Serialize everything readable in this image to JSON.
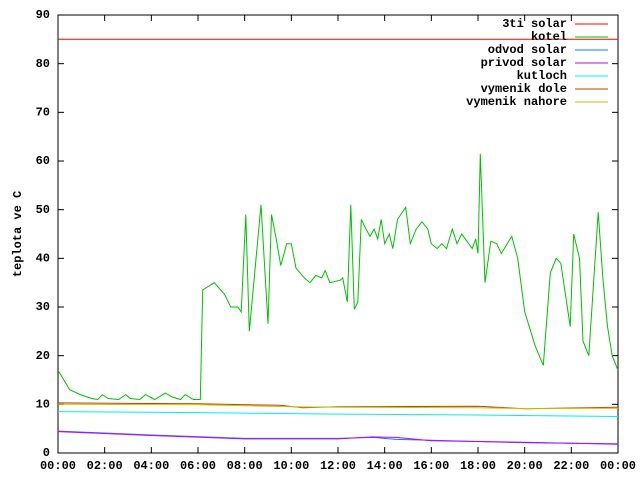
{
  "chart_data": {
    "type": "line",
    "ylabel": "teplota ve C",
    "xlim": [
      0,
      24
    ],
    "ylim": [
      0,
      90
    ],
    "xticks": [
      {
        "value": 0,
        "label": "00:00"
      },
      {
        "value": 2,
        "label": "02:00"
      },
      {
        "value": 4,
        "label": "04:00"
      },
      {
        "value": 6,
        "label": "06:00"
      },
      {
        "value": 8,
        "label": "08:00"
      },
      {
        "value": 10,
        "label": "10:00"
      },
      {
        "value": 12,
        "label": "12:00"
      },
      {
        "value": 14,
        "label": "14:00"
      },
      {
        "value": 16,
        "label": "16:00"
      },
      {
        "value": 18,
        "label": "18:00"
      },
      {
        "value": 20,
        "label": "20:00"
      },
      {
        "value": 22,
        "label": "22:00"
      },
      {
        "value": 24,
        "label": "00:00"
      }
    ],
    "yticks": [
      0,
      10,
      20,
      30,
      40,
      50,
      60,
      70,
      80,
      90
    ],
    "legend": "top-right",
    "series": [
      {
        "name": "3ti solar",
        "color": "#ff0000",
        "x": [
          0,
          24
        ],
        "values": [
          85,
          85
        ]
      },
      {
        "name": "kotel",
        "color": "#00c000",
        "x": [
          0,
          0.5,
          0.95,
          1.45,
          1.7,
          1.9,
          2.15,
          2.6,
          2.9,
          3.1,
          3.5,
          3.75,
          4.15,
          4.6,
          4.9,
          5.25,
          5.45,
          5.8,
          6.1,
          6.2,
          6.7,
          7.15,
          7.4,
          7.7,
          7.85,
          8.05,
          8.2,
          8.7,
          9.0,
          9.15,
          9.35,
          9.55,
          9.8,
          10.0,
          10.2,
          10.55,
          10.8,
          11.05,
          11.3,
          11.45,
          11.65,
          12.1,
          12.2,
          12.4,
          12.55,
          12.7,
          12.85,
          13.0,
          13.2,
          13.37,
          13.55,
          13.7,
          13.85,
          14.0,
          14.2,
          14.35,
          14.55,
          14.9,
          15.1,
          15.35,
          15.6,
          15.85,
          16.0,
          16.25,
          16.45,
          16.65,
          16.9,
          17.1,
          17.3,
          17.75,
          17.9,
          18.0,
          18.1,
          18.3,
          18.55,
          18.8,
          19.0,
          19.25,
          19.45,
          19.7,
          20.0,
          20.45,
          20.8,
          21.1,
          21.35,
          21.55,
          21.95,
          22.1,
          22.35,
          22.5,
          22.75,
          23.15,
          23.35,
          23.55,
          23.75,
          24.0
        ],
        "values": [
          17,
          13,
          12,
          11.2,
          11,
          12,
          11.2,
          11,
          12,
          11.2,
          11,
          12,
          11,
          12.3,
          11.5,
          11,
          12,
          11,
          11,
          33.5,
          35,
          32.5,
          30,
          30,
          29,
          49,
          25,
          51,
          26.5,
          49,
          44,
          38.5,
          43,
          43,
          38,
          36,
          35,
          36.5,
          36,
          37.5,
          35,
          35.5,
          36,
          31,
          51,
          29.5,
          31,
          48,
          46,
          44.5,
          46,
          44,
          48,
          43,
          45,
          42,
          48,
          50.5,
          43,
          46,
          47.5,
          46,
          43,
          42,
          43,
          42,
          46,
          43,
          45,
          42,
          44,
          41,
          61.5,
          35,
          43.5,
          43,
          41,
          43,
          44.5,
          40,
          29,
          22,
          18,
          37,
          40,
          39,
          26,
          45,
          40,
          23,
          20,
          49.5,
          36,
          26,
          20,
          17
        ]
      },
      {
        "name": "odvod solar",
        "color": "#0080ff",
        "x": [
          0,
          4,
          8,
          12,
          13.5,
          14.5,
          16,
          20,
          24
        ],
        "values": [
          4.5,
          3.7,
          3,
          3,
          3.2,
          2.8,
          2.6,
          2.1,
          1.9
        ]
      },
      {
        "name": "privod solar",
        "color": "#c000ff",
        "x": [
          0,
          4,
          8,
          12,
          13.5,
          14.5,
          16,
          20,
          24
        ],
        "values": [
          4.4,
          3.6,
          2.9,
          2.9,
          3.3,
          3.2,
          2.5,
          2.2,
          1.8
        ]
      },
      {
        "name": "kutloch",
        "color": "#00eeee",
        "x": [
          0,
          6,
          12,
          18,
          24
        ],
        "values": [
          8.5,
          8.3,
          8,
          7.8,
          7.5
        ]
      },
      {
        "name": "vymenik dole",
        "color": "#c04000",
        "x": [
          0,
          6,
          9.5,
          10.5,
          12,
          18,
          20,
          24
        ],
        "values": [
          10.3,
          10.1,
          9.8,
          9.3,
          9.5,
          9.6,
          9.1,
          9.4
        ]
      },
      {
        "name": "vymenik nahore",
        "color": "#c8c800",
        "x": [
          0,
          6,
          10,
          12,
          18,
          20,
          24
        ],
        "values": [
          10,
          9.9,
          9.5,
          9.4,
          9.3,
          9.1,
          9.2
        ]
      }
    ]
  }
}
